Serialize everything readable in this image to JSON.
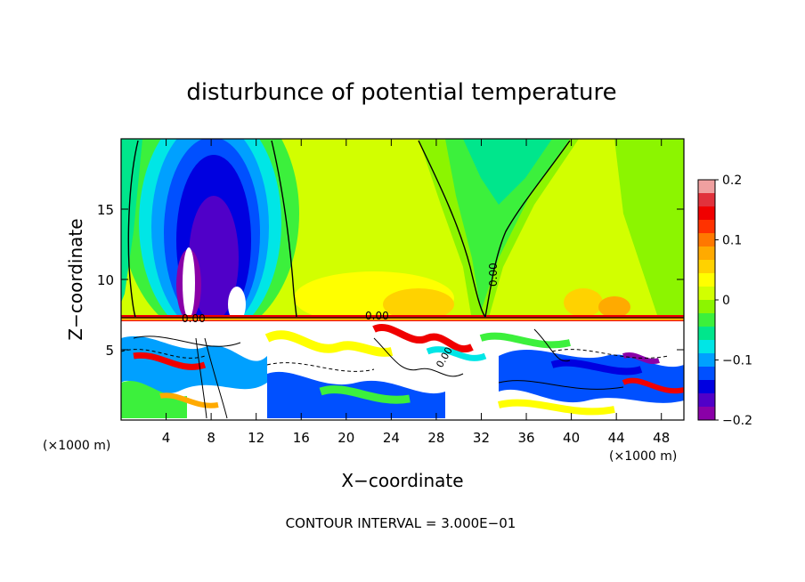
{
  "chart_data": {
    "type": "heatmap",
    "title": "disturbunce of potential temperature",
    "xlabel": "X−coordinate",
    "ylabel": "Z−coordinate",
    "x_unit": "(×1000 m)",
    "x_unit_right": "(×1000 m)",
    "xlim": [
      0,
      50
    ],
    "ylim": [
      0,
      20
    ],
    "x_ticks": [
      4,
      8,
      12,
      16,
      20,
      24,
      28,
      32,
      36,
      40,
      44,
      48
    ],
    "y_ticks": [
      5,
      10,
      15
    ],
    "colorbar": {
      "min": -0.2,
      "max": 0.2,
      "ticks": [
        0.2,
        0.1,
        0,
        -0.1,
        -0.2
      ],
      "tick_labels": [
        "0.2",
        "0.1",
        "0",
        "−0.1",
        "−0.2"
      ],
      "colors": [
        "#8a00a8",
        "#5000c8",
        "#0000e0",
        "#0050ff",
        "#00a0ff",
        "#00e6e6",
        "#00e68c",
        "#3cf03c",
        "#8cf500",
        "#d2ff00",
        "#ffff00",
        "#ffd200",
        "#ffaa00",
        "#ff7800",
        "#ff3200",
        "#f00000",
        "#e1323c",
        "#f0a0a0"
      ]
    },
    "contour_labels": [
      "0.00",
      "0.00",
      "0.00",
      "0.00"
    ],
    "footer": "CONTOUR INTERVAL = 3.000E−01"
  }
}
